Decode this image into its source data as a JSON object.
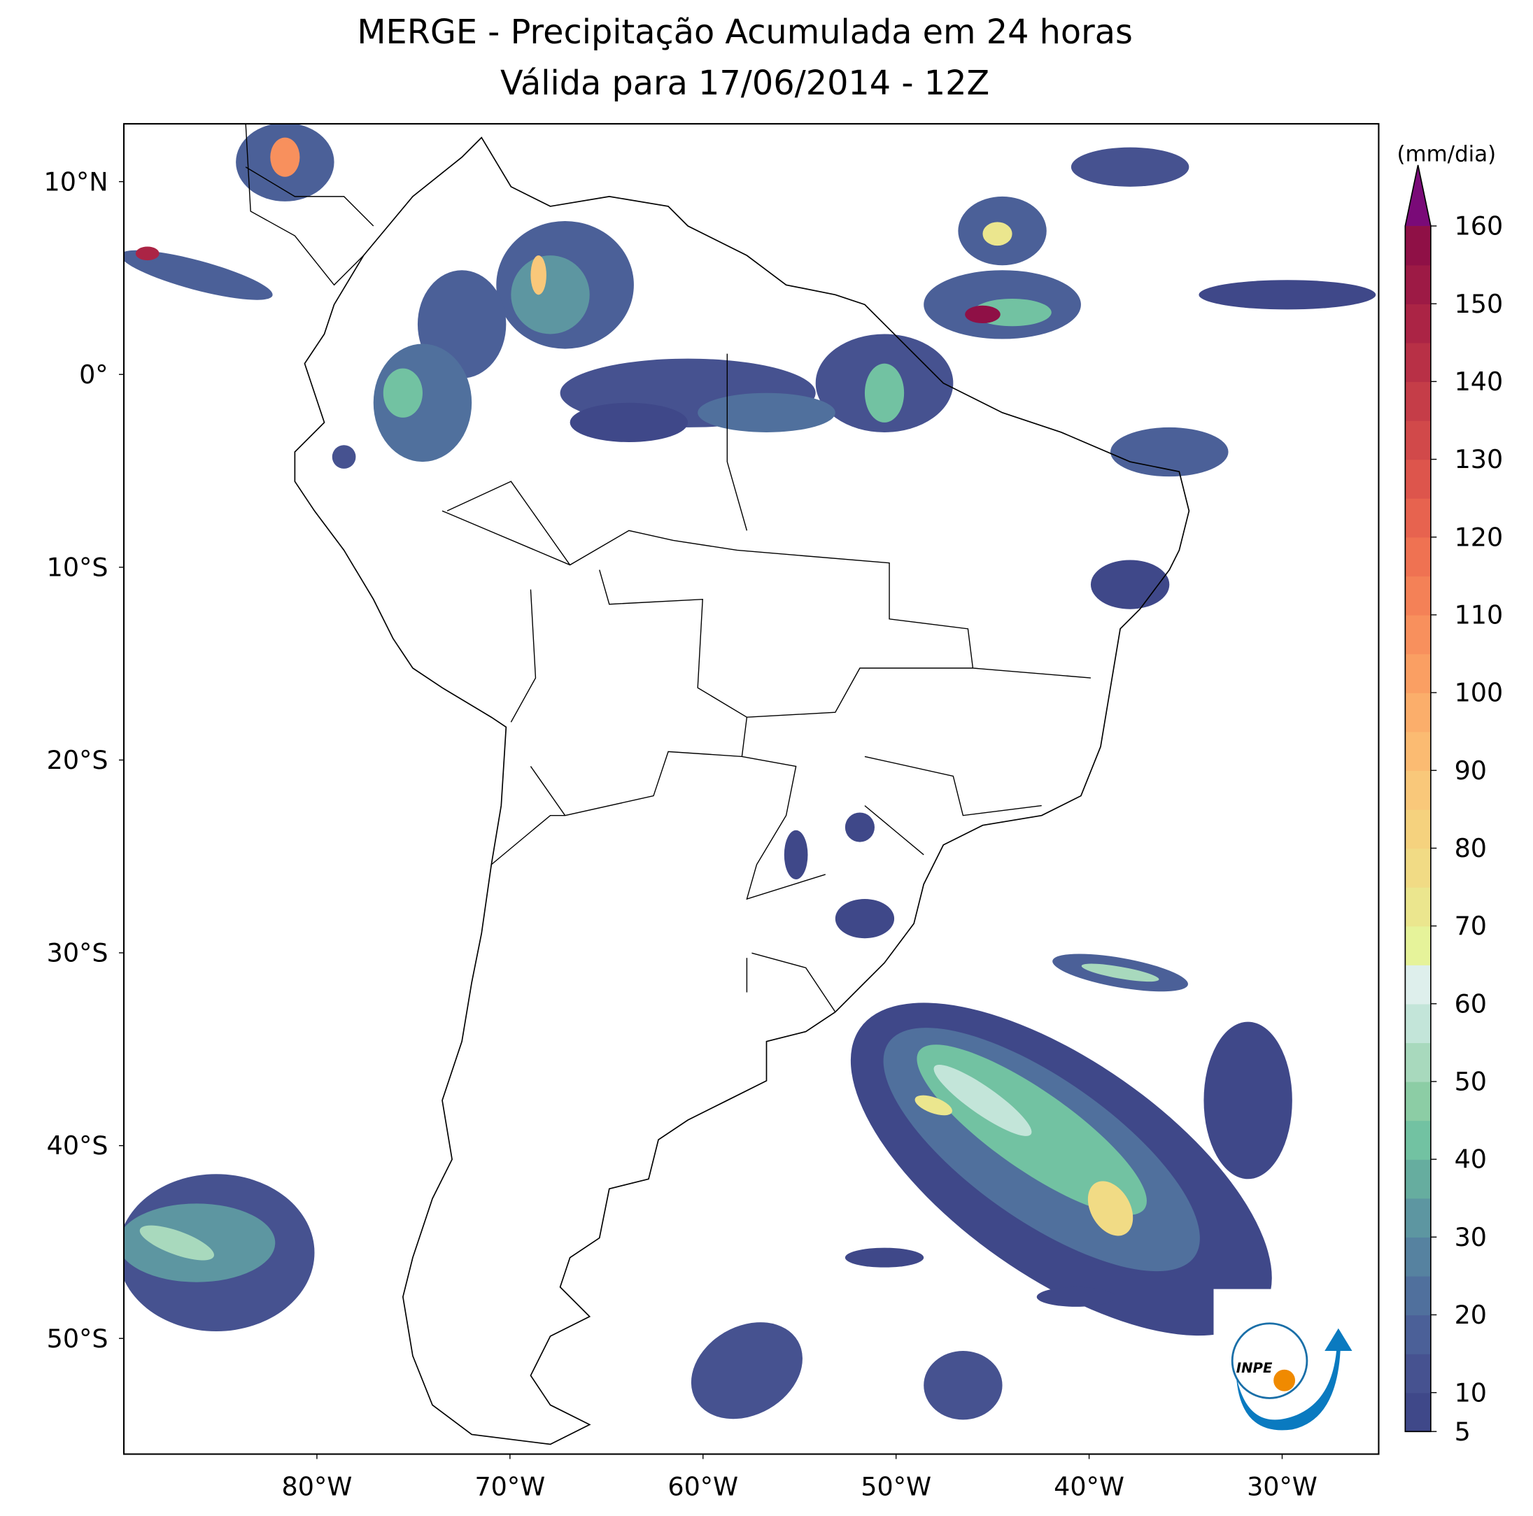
{
  "title": "MERGE - Precipitação Acumulada em 24 horas",
  "subtitle": "Válida para 17/06/2014 - 12Z",
  "map": {
    "xlim": [
      -90,
      -25
    ],
    "ylim": [
      -56,
      13
    ],
    "xticks": [
      {
        "value": -80,
        "label": "80°W"
      },
      {
        "value": -70,
        "label": "70°W"
      },
      {
        "value": -60,
        "label": "60°W"
      },
      {
        "value": -50,
        "label": "50°W"
      },
      {
        "value": -40,
        "label": "40°W"
      },
      {
        "value": -30,
        "label": "30°W"
      }
    ],
    "yticks": [
      {
        "value": 10,
        "label": "10°N"
      },
      {
        "value": 0,
        "label": "0°"
      },
      {
        "value": -10,
        "label": "10°S"
      },
      {
        "value": -20,
        "label": "20°S"
      },
      {
        "value": -30,
        "label": "30°S"
      },
      {
        "value": -40,
        "label": "40°S"
      },
      {
        "value": -50,
        "label": "50°S"
      }
    ]
  },
  "colorbar": {
    "label": "(mm/dia)",
    "lim": [
      5,
      160
    ],
    "ticks": [
      5,
      10,
      20,
      30,
      40,
      50,
      60,
      70,
      80,
      90,
      100,
      110,
      120,
      130,
      140,
      150,
      160
    ],
    "colors": [
      "#3f4889",
      "#465290",
      "#4b6098",
      "#50709d",
      "#5682a0",
      "#5d96a1",
      "#66ad9f",
      "#72c2a2",
      "#8ccda5",
      "#a8d9bd",
      "#c3e5d9",
      "#deefec",
      "#e6f39a",
      "#ebe68e",
      "#f1db85",
      "#f5d27e",
      "#f9c87a",
      "#fbbb72",
      "#fbae6b",
      "#fa9f63",
      "#f8905d",
      "#f48157",
      "#ef7252",
      "#e7634f",
      "#dd554c",
      "#d1494a",
      "#c53d48",
      "#b83046",
      "#ab2445",
      "#9d1a45",
      "#8f1046"
    ],
    "extend_color": "#7a0a78"
  },
  "logo": {
    "text": "INPE"
  }
}
